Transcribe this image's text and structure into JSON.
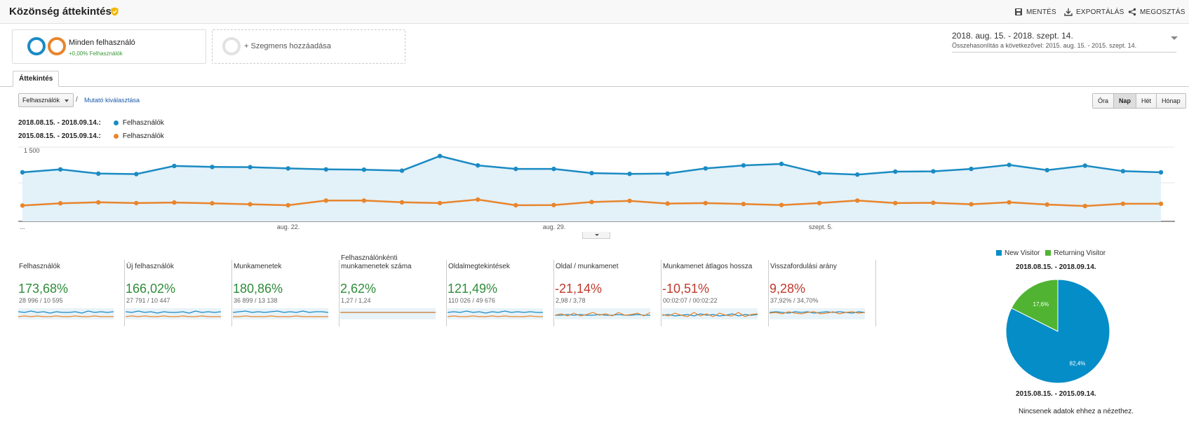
{
  "header": {
    "title": "Közönség áttekintése",
    "actions": [
      {
        "label": "MENTÉS",
        "icon": "save-icon"
      },
      {
        "label": "EXPORTÁLÁS",
        "icon": "export-icon"
      },
      {
        "label": "MEGOSZTÁS",
        "icon": "share-icon"
      }
    ]
  },
  "segments": {
    "active": {
      "name": "Minden felhasználó",
      "change": "+0,00% Felhasználók"
    },
    "add_label": "+ Szegmens hozzáadása"
  },
  "date_range": {
    "main": "2018. aug. 15. - 2018. szept. 14.",
    "compare": "Összehasonlítás a következővel: 2015. aug. 15. - 2015. szept. 14."
  },
  "tabs": [
    {
      "label": "Áttekintés",
      "active": true
    }
  ],
  "chart_controls": {
    "metric": "Felhasználók",
    "separator": "/",
    "select_metric_link": "Mutató kiválasztása",
    "granularity": [
      {
        "label": "Óra",
        "active": false
      },
      {
        "label": "Nap",
        "active": true
      },
      {
        "label": "Hét",
        "active": false
      },
      {
        "label": "Hónap",
        "active": false
      }
    ]
  },
  "colors": {
    "current": "#1a8bc3",
    "previous": "#e8852c",
    "new_visitor": "#058dc7",
    "returning_visitor": "#50b432"
  },
  "chart_data": {
    "type": "line",
    "legend": [
      {
        "range": "2018.08.15. - 2018.09.14.:",
        "name": "Felhasználók",
        "color": "#1a8bc3"
      },
      {
        "range": "2015.08.15. - 2015.09.14.:",
        "name": "Felhasználók",
        "color": "#e8852c"
      }
    ],
    "ylim": [
      0,
      1500
    ],
    "y_ticks": [
      "1 500",
      "750"
    ],
    "x_ticks": [
      "...",
      "aug. 22.",
      "aug. 29.",
      "szept. 5."
    ],
    "series": [
      {
        "name": "Felhasználók",
        "values": [
          990,
          1050,
          965,
          955,
          1120,
          1100,
          1095,
          1070,
          1050,
          1045,
          1025,
          1320,
          1130,
          1060,
          1060,
          975,
          960,
          965,
          1070,
          1130,
          1160,
          975,
          945,
          1005,
          1010,
          1060,
          1140,
          1035,
          1125,
          1015,
          990
        ]
      },
      {
        "name": "Felhasználók",
        "values": [
          320,
          365,
          385,
          370,
          380,
          365,
          345,
          325,
          420,
          420,
          385,
          370,
          440,
          325,
          330,
          390,
          415,
          360,
          370,
          350,
          330,
          370,
          420,
          370,
          375,
          345,
          385,
          340,
          310,
          355,
          355
        ]
      }
    ]
  },
  "metrics": [
    {
      "label": "Felhasználók",
      "pct": "173,68%",
      "values": "28 996 / 10 595",
      "trend": "positive"
    },
    {
      "label": "Új felhasználók",
      "pct": "166,02%",
      "values": "27 791 / 10 447",
      "trend": "positive"
    },
    {
      "label": "Munkamenetek",
      "pct": "180,86%",
      "values": "36 899 / 13 138",
      "trend": "positive"
    },
    {
      "label": "Felhasználónkénti munkamenetek száma",
      "pct": "2,62%",
      "values": "1,27 / 1,24",
      "trend": "positive"
    },
    {
      "label": "Oldalmegtekintések",
      "pct": "121,49%",
      "values": "110 026 / 49 676",
      "trend": "positive"
    },
    {
      "label": "Oldal / munkamenet",
      "pct": "-21,14%",
      "values": "2,98 / 3,78",
      "trend": "negative"
    },
    {
      "label": "Munkamenet átlagos hossza",
      "pct": "-10,51%",
      "values": "00:02:07 / 00:02:22",
      "trend": "negative"
    },
    {
      "label": "Visszafordulási arány",
      "pct": "9,28%",
      "values": "37,92% / 34,70%",
      "trend": "negative"
    }
  ],
  "pie": {
    "legend": [
      {
        "label": "New Visitor",
        "color": "#058dc7"
      },
      {
        "label": "Returning Visitor",
        "color": "#50b432"
      }
    ],
    "current_range": "2018.08.15. - 2018.09.14.",
    "previous_range": "2015.08.15. - 2015.09.14.",
    "no_data": "Nincsenek adatok ehhez a nézethez.",
    "slices": [
      {
        "name": "New Visitor",
        "value": 82.4,
        "label": "82,4%"
      },
      {
        "name": "Returning Visitor",
        "value": 17.6,
        "label": "17,6%"
      }
    ]
  }
}
